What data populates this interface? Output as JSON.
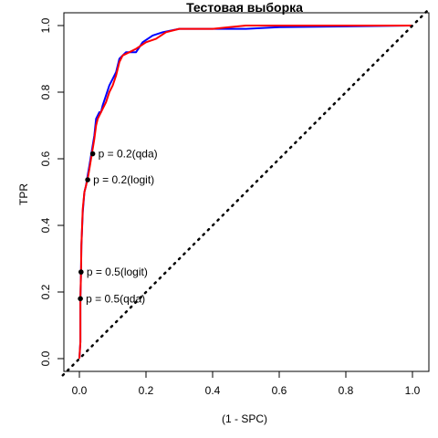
{
  "chart_data": {
    "type": "line",
    "title": "Тестовая выборка",
    "xlabel": "(1 - SPC)",
    "ylabel": "TPR",
    "xlim": [
      0,
      1
    ],
    "ylim": [
      0,
      1
    ],
    "x_ticks": [
      "0.0",
      "0.2",
      "0.4",
      "0.6",
      "0.8",
      "1.0"
    ],
    "y_ticks": [
      "0.0",
      "0.2",
      "0.4",
      "0.6",
      "0.8",
      "1.0"
    ],
    "grid": false,
    "legend": "none",
    "series": [
      {
        "color": "#0000ff",
        "points": [
          [
            0,
            0
          ],
          [
            0.003,
            0.05
          ],
          [
            0.003,
            0.18
          ],
          [
            0.005,
            0.26
          ],
          [
            0.006,
            0.34
          ],
          [
            0.01,
            0.44
          ],
          [
            0.015,
            0.5
          ],
          [
            0.02,
            0.52
          ],
          [
            0.025,
            0.55
          ],
          [
            0.03,
            0.58
          ],
          [
            0.035,
            0.61
          ],
          [
            0.04,
            0.64
          ],
          [
            0.045,
            0.67
          ],
          [
            0.05,
            0.72
          ],
          [
            0.06,
            0.74
          ],
          [
            0.065,
            0.74
          ],
          [
            0.07,
            0.76
          ],
          [
            0.08,
            0.79
          ],
          [
            0.09,
            0.82
          ],
          [
            0.1,
            0.84
          ],
          [
            0.11,
            0.86
          ],
          [
            0.12,
            0.9
          ],
          [
            0.13,
            0.91
          ],
          [
            0.14,
            0.92
          ],
          [
            0.17,
            0.92
          ],
          [
            0.19,
            0.95
          ],
          [
            0.22,
            0.97
          ],
          [
            0.25,
            0.98
          ],
          [
            0.3,
            0.99
          ],
          [
            0.5,
            0.99
          ],
          [
            0.6,
            0.995
          ],
          [
            1,
            1
          ]
        ]
      },
      {
        "color": "#ff0000",
        "points": [
          [
            0,
            0
          ],
          [
            0.003,
            0.05
          ],
          [
            0.003,
            0.18
          ],
          [
            0.005,
            0.26
          ],
          [
            0.006,
            0.34
          ],
          [
            0.01,
            0.45
          ],
          [
            0.015,
            0.5
          ],
          [
            0.02,
            0.52
          ],
          [
            0.025,
            0.54
          ],
          [
            0.03,
            0.57
          ],
          [
            0.035,
            0.6
          ],
          [
            0.04,
            0.63
          ],
          [
            0.045,
            0.66
          ],
          [
            0.05,
            0.7
          ],
          [
            0.055,
            0.72
          ],
          [
            0.06,
            0.73
          ],
          [
            0.07,
            0.75
          ],
          [
            0.08,
            0.77
          ],
          [
            0.09,
            0.8
          ],
          [
            0.1,
            0.82
          ],
          [
            0.11,
            0.85
          ],
          [
            0.12,
            0.89
          ],
          [
            0.13,
            0.91
          ],
          [
            0.15,
            0.92
          ],
          [
            0.17,
            0.93
          ],
          [
            0.2,
            0.95
          ],
          [
            0.23,
            0.96
          ],
          [
            0.26,
            0.98
          ],
          [
            0.3,
            0.99
          ],
          [
            0.4,
            0.99
          ],
          [
            0.5,
            1
          ],
          [
            1,
            1
          ]
        ]
      },
      {
        "color": "#000000",
        "style": "dotted",
        "points": [
          [
            -0.05,
            -0.05
          ],
          [
            1.05,
            1.05
          ]
        ]
      }
    ],
    "annotations": [
      {
        "x": 0.04,
        "y": 0.615,
        "text": "p = 0.2(qda)"
      },
      {
        "x": 0.025,
        "y": 0.537,
        "text": "p = 0.2(logit)"
      },
      {
        "x": 0.005,
        "y": 0.26,
        "text": "p = 0.5(logit)"
      },
      {
        "x": 0.003,
        "y": 0.18,
        "text": "p = 0.5(qda)"
      }
    ]
  }
}
